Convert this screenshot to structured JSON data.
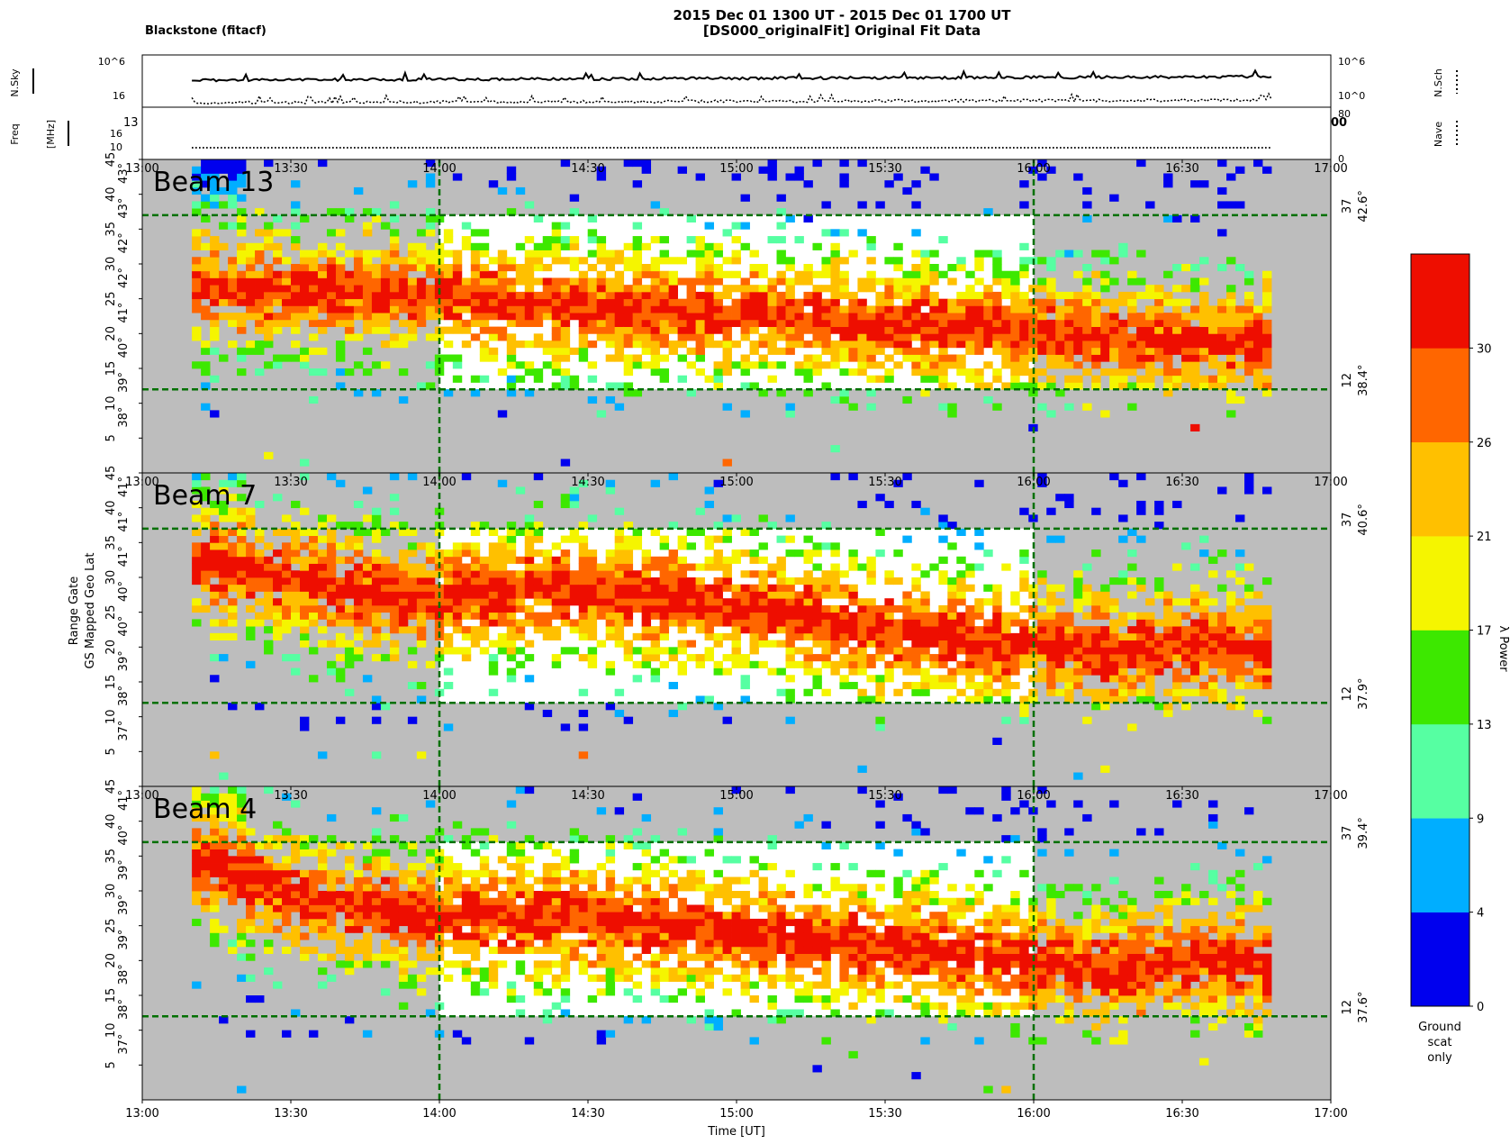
{
  "header": {
    "station": "Blackstone  (fitacf)",
    "title_line1": "2015 Dec 01 1300 UT - 2015 Dec 01 1700 UT",
    "title_line2": "[DS000_originalFit] Original Fit Data"
  },
  "top_panels": {
    "nsky_label": "N.Sky",
    "nsch_label": "N.Sch",
    "freq_label": "Freq",
    "freq_unit": "[MHz]",
    "nave_label": "Nave",
    "left_ticks_upper": [
      "10^6",
      "10^0"
    ],
    "right_ticks_upper": [
      "10^6",
      "10^0"
    ],
    "left_ticks_lower": [
      "16",
      "10"
    ],
    "right_ticks_lower": [
      "80",
      "0"
    ],
    "clipped_left": "13",
    "clipped_right": "00"
  },
  "time_ticks": [
    "13:00",
    "13:30",
    "14:00",
    "14:30",
    "15:00",
    "15:30",
    "16:00",
    "16:30",
    "17:00"
  ],
  "xlabel": "Time [UT]",
  "ylabel_line1": "Range Gate",
  "ylabel_line2": "GS Mapped Geo Lat",
  "range_gate_ticks": [
    "5",
    "10",
    "15",
    "20",
    "25",
    "30",
    "35",
    "40",
    "45"
  ],
  "chart_data": {
    "type": "heatmap",
    "x_range": [
      "13:00",
      "17:00"
    ],
    "y_range": [
      0,
      45
    ],
    "dashed_vertical_lines": [
      "14:00",
      "16:00"
    ],
    "dashed_horizontal_gates": [
      12,
      37
    ],
    "beams": [
      {
        "label": "Beam 13",
        "lat_ticks": [
          "38°",
          "39°",
          "40°",
          "41°",
          "42°",
          "42°",
          "43°",
          "43°"
        ],
        "right_gate_upper": "37",
        "right_lat_upper": "42.6°",
        "right_gate_lower": "12",
        "right_lat_lower": "38.4°",
        "band_gate": [
          [
            0,
            26
          ],
          [
            1,
            25.5
          ],
          [
            2,
            25
          ],
          [
            3,
            24
          ],
          [
            4,
            23
          ],
          [
            5,
            22
          ],
          [
            6,
            21
          ],
          [
            7,
            20
          ],
          [
            8,
            19
          ],
          [
            9,
            18
          ],
          [
            9.5,
            18
          ]
        ],
        "band_power": 24
      },
      {
        "label": "Beam 7",
        "lat_ticks": [
          "37°",
          "38°",
          "39°",
          "40°",
          "40°",
          "41°",
          "41°",
          "41°"
        ],
        "right_gate_upper": "37",
        "right_lat_upper": "40.6°",
        "right_gate_lower": "12",
        "right_lat_lower": "37.9°",
        "band_gate": [
          [
            0,
            32
          ],
          [
            1,
            29
          ],
          [
            2,
            26
          ],
          [
            3,
            28
          ],
          [
            4,
            27
          ],
          [
            5,
            25
          ],
          [
            6,
            22
          ],
          [
            7,
            20.5
          ],
          [
            8,
            19
          ],
          [
            9,
            20
          ],
          [
            9.5,
            19
          ]
        ],
        "band_power": 25
      },
      {
        "label": "Beam 4",
        "lat_ticks": [
          "37°",
          "38°",
          "38°",
          "39°",
          "39°",
          "39°",
          "40°",
          "41°"
        ],
        "right_gate_upper": "37",
        "right_lat_upper": "39.4°",
        "right_gate_lower": "12",
        "right_lat_lower": "37.6°",
        "band_gate": [
          [
            0,
            34
          ],
          [
            1,
            28
          ],
          [
            2,
            26
          ],
          [
            3,
            26
          ],
          [
            4,
            25
          ],
          [
            5,
            23
          ],
          [
            6,
            21.5
          ],
          [
            7,
            20
          ],
          [
            8,
            18
          ],
          [
            9,
            20
          ],
          [
            9.5,
            19
          ]
        ],
        "band_power": 25
      }
    ],
    "colorbar": {
      "label": "λ Power",
      "ticks": [
        "0",
        "4",
        "9",
        "13",
        "17",
        "21",
        "26",
        "30"
      ],
      "bounds": [
        0,
        4,
        9,
        13,
        17,
        21,
        26,
        30,
        35
      ],
      "colors": [
        "#0000ee",
        "#00aeff",
        "#56ffa2",
        "#3de800",
        "#f5f500",
        "#ffc000",
        "#ff6600",
        "#ee0e00"
      ],
      "ground_scatter_label": [
        "Ground",
        "scat",
        "only"
      ],
      "ground_scatter_color": "#bdbdbd"
    },
    "series_top": [
      {
        "name": "N.Sky",
        "level_exp": 4.2
      },
      {
        "name": "N.Sch",
        "level_exp": 0.6
      },
      {
        "name": "Freq",
        "level_mhz": 10.5
      },
      {
        "name": "Nave",
        "level": 15
      }
    ]
  }
}
